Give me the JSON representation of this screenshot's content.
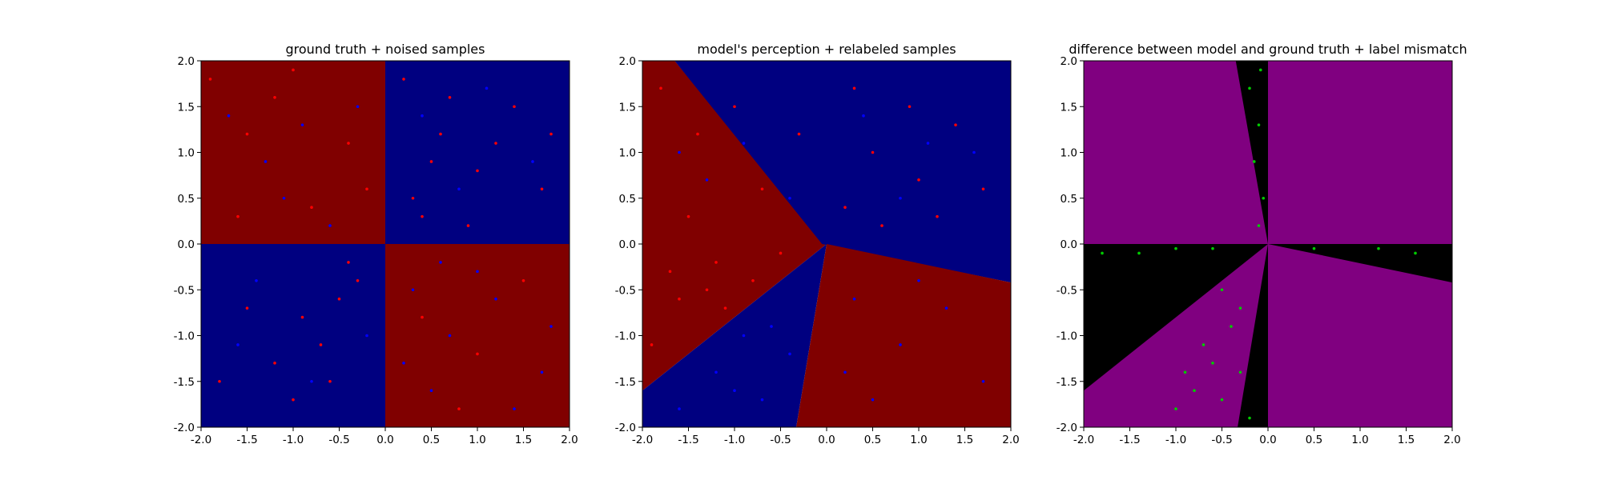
{
  "colors": {
    "class_red": "#800000",
    "class_blue": "#000080",
    "point_red": "#ff0000",
    "point_blue": "#0000ff",
    "diff_agree": "#800080",
    "diff_disagree": "#000000",
    "mismatch_point": "#00cc00"
  },
  "chart_data": [
    {
      "type": "scatter",
      "title": "ground truth + noised samples",
      "xlabel": "",
      "ylabel": "",
      "xlim": [
        -2.0,
        2.0
      ],
      "ylim": [
        -2.0,
        2.0
      ],
      "xticks": [
        "-2.0",
        "-1.5",
        "-1.0",
        "-0.5",
        "0.0",
        "0.5",
        "1.0",
        "1.5",
        "2.0"
      ],
      "yticks": [
        "-2.0",
        "-1.5",
        "-1.0",
        "-0.5",
        "0.0",
        "0.5",
        "1.0",
        "1.5",
        "2.0"
      ],
      "background": "quadrant sign(x*y): red where x*y<0, blue where x*y>0",
      "series": [
        {
          "color": "red",
          "points": [
            [
              -1.9,
              1.8
            ],
            [
              -1.5,
              1.2
            ],
            [
              -1.2,
              1.6
            ],
            [
              -0.8,
              0.4
            ],
            [
              -0.4,
              1.1
            ],
            [
              -1.6,
              0.3
            ],
            [
              -0.2,
              0.6
            ],
            [
              -1.0,
              1.9
            ],
            [
              0.3,
              0.5
            ],
            [
              0.6,
              1.2
            ],
            [
              1.0,
              0.8
            ],
            [
              1.4,
              1.5
            ],
            [
              0.2,
              1.8
            ],
            [
              0.9,
              0.2
            ],
            [
              1.7,
              0.6
            ],
            [
              0.5,
              0.9
            ],
            [
              1.2,
              1.1
            ],
            [
              0.4,
              0.3
            ],
            [
              1.8,
              1.2
            ],
            [
              0.7,
              1.6
            ],
            [
              -0.5,
              -0.6
            ],
            [
              -0.9,
              -0.8
            ],
            [
              -1.2,
              -1.3
            ],
            [
              -0.3,
              -0.4
            ],
            [
              -0.7,
              -1.1
            ],
            [
              -1.5,
              -0.7
            ],
            [
              -1.0,
              -1.7
            ],
            [
              -0.4,
              -0.2
            ],
            [
              -1.8,
              -1.5
            ],
            [
              -0.6,
              -1.5
            ],
            [
              0.4,
              -0.8
            ],
            [
              1.0,
              -1.2
            ],
            [
              1.5,
              -0.4
            ],
            [
              0.8,
              -1.8
            ]
          ]
        },
        {
          "color": "blue",
          "points": [
            [
              -1.7,
              1.4
            ],
            [
              -1.3,
              0.9
            ],
            [
              -0.9,
              1.3
            ],
            [
              -0.6,
              0.2
            ],
            [
              -0.3,
              1.5
            ],
            [
              -1.1,
              0.5
            ],
            [
              0.4,
              1.4
            ],
            [
              1.1,
              1.7
            ],
            [
              0.8,
              0.6
            ],
            [
              1.6,
              0.9
            ],
            [
              -1.4,
              -0.4
            ],
            [
              -0.8,
              -1.5
            ],
            [
              -0.2,
              -1.0
            ],
            [
              -1.6,
              -1.1
            ],
            [
              0.3,
              -0.5
            ],
            [
              0.7,
              -1.0
            ],
            [
              1.2,
              -0.6
            ],
            [
              1.7,
              -1.4
            ],
            [
              0.5,
              -1.6
            ],
            [
              1.0,
              -0.3
            ],
            [
              1.4,
              -1.8
            ],
            [
              0.2,
              -1.3
            ],
            [
              1.8,
              -0.9
            ],
            [
              0.6,
              -0.2
            ]
          ]
        }
      ]
    },
    {
      "type": "scatter",
      "title": "model's perception + relabeled samples",
      "xlabel": "",
      "ylabel": "",
      "xlim": [
        -2.0,
        2.0
      ],
      "ylim": [
        -2.0,
        2.0
      ],
      "xticks": [
        "-2.0",
        "-1.5",
        "-1.0",
        "-0.5",
        "0.0",
        "0.5",
        "1.0",
        "1.5",
        "2.0"
      ],
      "yticks": [
        "-2.0",
        "-1.5",
        "-1.0",
        "-0.5",
        "0.0",
        "0.5",
        "1.0",
        "1.5",
        "2.0"
      ],
      "background": "model decision regions (rotated quadrants)",
      "series": [
        {
          "color": "red",
          "points": [
            [
              -1.8,
              1.7
            ],
            [
              -1.4,
              1.2
            ],
            [
              -1.0,
              1.5
            ],
            [
              -0.7,
              0.6
            ],
            [
              -1.5,
              0.3
            ],
            [
              -0.3,
              1.2
            ],
            [
              -1.2,
              -0.2
            ],
            [
              -1.6,
              -0.6
            ],
            [
              -0.8,
              -0.4
            ],
            [
              -1.9,
              -1.1
            ],
            [
              -0.5,
              -0.1
            ],
            [
              -1.1,
              -0.7
            ],
            [
              0.2,
              0.4
            ],
            [
              0.5,
              1.0
            ],
            [
              1.0,
              0.7
            ],
            [
              1.4,
              1.3
            ],
            [
              0.6,
              0.2
            ],
            [
              1.7,
              0.6
            ],
            [
              0.3,
              1.7
            ],
            [
              1.2,
              0.3
            ],
            [
              0.9,
              1.5
            ],
            [
              -1.3,
              -0.5
            ],
            [
              -1.7,
              -0.3
            ]
          ]
        },
        {
          "color": "blue",
          "points": [
            [
              -1.6,
              1.0
            ],
            [
              -0.9,
              1.1
            ],
            [
              -0.4,
              0.5
            ],
            [
              -1.3,
              0.7
            ],
            [
              0.4,
              1.4
            ],
            [
              1.1,
              1.1
            ],
            [
              0.8,
              0.5
            ],
            [
              1.6,
              1.0
            ],
            [
              -1.2,
              -1.4
            ],
            [
              -0.7,
              -1.7
            ],
            [
              -0.4,
              -1.2
            ],
            [
              -1.6,
              -1.8
            ],
            [
              -0.9,
              -1.0
            ],
            [
              0.3,
              -0.6
            ],
            [
              0.8,
              -1.1
            ],
            [
              1.3,
              -0.7
            ],
            [
              1.7,
              -1.5
            ],
            [
              0.5,
              -1.7
            ],
            [
              1.0,
              -0.4
            ],
            [
              0.2,
              -1.4
            ],
            [
              -0.6,
              -0.9
            ],
            [
              -1.0,
              -1.6
            ]
          ]
        }
      ]
    },
    {
      "type": "scatter",
      "title": "difference between model and ground truth + label mismatch",
      "xlabel": "",
      "ylabel": "",
      "xlim": [
        -2.0,
        2.0
      ],
      "ylim": [
        -2.0,
        2.0
      ],
      "xticks": [
        "-2.0",
        "-1.5",
        "-1.0",
        "-0.5",
        "0.0",
        "0.5",
        "1.0",
        "1.5",
        "2.0"
      ],
      "yticks": [
        "-2.0",
        "-1.5",
        "-1.0",
        "-0.5",
        "0.0",
        "0.5",
        "1.0",
        "1.5",
        "2.0"
      ],
      "background": "purple where model agrees with ground truth, black where it disagrees",
      "series": [
        {
          "color": "green",
          "points": [
            [
              -0.1,
              1.3
            ],
            [
              -0.15,
              0.9
            ],
            [
              -0.05,
              0.5
            ],
            [
              -0.2,
              1.7
            ],
            [
              -0.1,
              0.2
            ],
            [
              -0.08,
              1.9
            ],
            [
              -1.0,
              -0.05
            ],
            [
              -1.4,
              -0.1
            ],
            [
              -0.6,
              -0.05
            ],
            [
              -1.8,
              -0.1
            ],
            [
              0.5,
              -0.05
            ],
            [
              1.2,
              -0.05
            ],
            [
              1.6,
              -0.1
            ],
            [
              -0.5,
              -0.5
            ],
            [
              -0.4,
              -0.9
            ],
            [
              -0.6,
              -1.3
            ],
            [
              -0.8,
              -1.6
            ],
            [
              -0.3,
              -0.7
            ],
            [
              -0.7,
              -1.1
            ],
            [
              -1.0,
              -1.8
            ],
            [
              -0.5,
              -1.7
            ],
            [
              -0.3,
              -1.4
            ],
            [
              -0.2,
              -1.9
            ],
            [
              -0.9,
              -1.4
            ]
          ]
        }
      ]
    }
  ]
}
